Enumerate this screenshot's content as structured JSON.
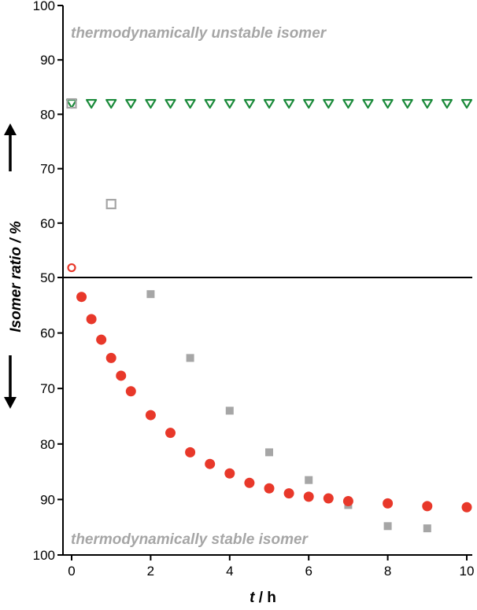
{
  "chart_data": {
    "type": "scatter",
    "xlabel_italic": "t",
    "xlabel_rest": " / h",
    "ylabel": "Isomer ratio / %",
    "x_ticks": [
      "0",
      "2",
      "4",
      "6",
      "8",
      "10"
    ],
    "xlim": [
      0,
      10
    ],
    "top_panel": {
      "ylim": [
        50,
        100
      ],
      "y_ticks": [
        "50",
        "60",
        "70",
        "80",
        "90",
        "100"
      ],
      "annotation": "thermodynamically unstable isomer",
      "direction": "up"
    },
    "bottom_panel": {
      "ylim": [
        100,
        50
      ],
      "y_ticks": [
        "60",
        "70",
        "80",
        "90",
        "100"
      ],
      "annotation": "thermodynamically stable isomer",
      "direction": "down"
    },
    "series": [
      {
        "name": "green-triangles-open",
        "panel": "top",
        "marker": "triangle-down-open",
        "color": "#1a8a3a",
        "x": [
          0,
          0.5,
          1,
          1.5,
          2,
          2.5,
          3,
          3.5,
          4,
          4.5,
          5,
          5.5,
          6,
          6.5,
          7,
          7.5,
          8,
          8.5,
          9,
          9.5,
          10
        ],
        "y": [
          82,
          82,
          82,
          82,
          82,
          82,
          82,
          82,
          82,
          82,
          82,
          82,
          82,
          82,
          82,
          82,
          82,
          82,
          82,
          82,
          82
        ]
      },
      {
        "name": "grey-squares-open",
        "panel": "top",
        "marker": "square-open",
        "color": "#a6a6a6",
        "x": [
          0,
          1
        ],
        "y": [
          82,
          63.5
        ]
      },
      {
        "name": "red-circle-open",
        "panel": "top",
        "marker": "circle-open",
        "color": "#e8382a",
        "x": [
          0
        ],
        "y": [
          51.8
        ]
      },
      {
        "name": "grey-squares-filled",
        "panel": "bottom",
        "marker": "square-filled",
        "color": "#a6a6a6",
        "x": [
          2,
          3,
          4,
          5,
          6,
          7,
          8,
          9
        ],
        "y": [
          53,
          64.5,
          74,
          81.5,
          86.5,
          91,
          94.8,
          95.2
        ]
      },
      {
        "name": "red-circles-filled",
        "panel": "bottom",
        "marker": "circle-filled",
        "color": "#e8382a",
        "x": [
          0.25,
          0.5,
          0.75,
          1,
          1.25,
          1.5,
          2,
          2.5,
          3,
          3.5,
          4,
          4.5,
          5,
          5.5,
          6,
          6.5,
          7,
          8,
          9,
          10
        ],
        "y": [
          53.5,
          57.5,
          61.2,
          64.5,
          67.7,
          70.5,
          74.8,
          78,
          81.5,
          83.6,
          85.3,
          87,
          88,
          88.9,
          89.5,
          89.8,
          90.3,
          90.7,
          91.2,
          91.4
        ]
      }
    ]
  }
}
